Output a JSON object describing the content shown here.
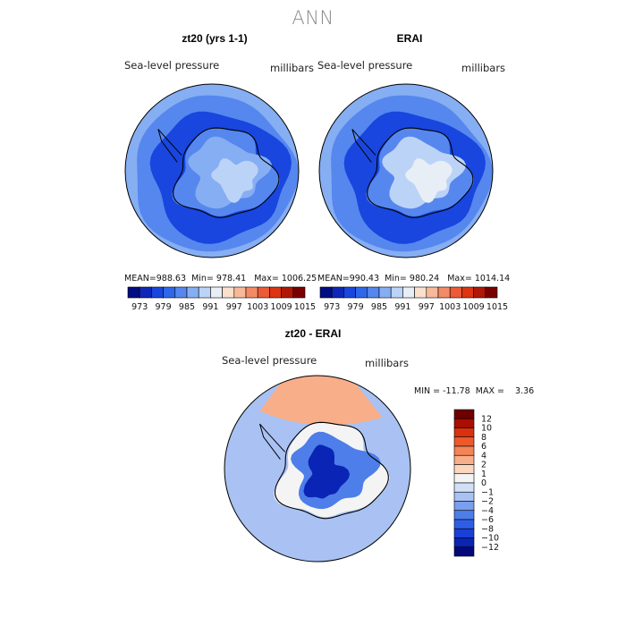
{
  "figure": {
    "title": "ANN",
    "colors": {
      "abs_scale": [
        "#000d82",
        "#0f27b8",
        "#1846de",
        "#2f67ea",
        "#5687ee",
        "#86aef3",
        "#bcd3f8",
        "#e8eef6",
        "#fbe0cd",
        "#f8b89a",
        "#f38a66",
        "#ec5a37",
        "#dd3412",
        "#b01706",
        "#7a0000"
      ],
      "diff_scale": [
        "#04087a",
        "#0a24b6",
        "#1a40d8",
        "#2d5ee4",
        "#4d7ee9",
        "#7a9fed",
        "#a9c2f3",
        "#d2e0f7",
        "#f4f4f4",
        "#fbd7bf",
        "#f8ae89",
        "#f38455",
        "#ec5a2c",
        "#d9310e",
        "#a80e02",
        "#6e0000"
      ],
      "coast": "#000000"
    }
  },
  "panels": {
    "left": {
      "title": "zt20 (yrs 1-1)",
      "var_label": "Sea-level pressure",
      "units": "millibars",
      "stats": {
        "mean_label": "MEAN=",
        "mean": "988.63",
        "min_label": "Min=",
        "min": "978.41",
        "max_label": "Max=",
        "max": "1006.25"
      },
      "ticks": [
        "973",
        "979",
        "985",
        "991",
        "997",
        "1003",
        "1009",
        "1015"
      ]
    },
    "right": {
      "title": "ERAI",
      "var_label": "Sea-level pressure",
      "units": "millibars",
      "stats": {
        "mean_label": "MEAN=",
        "mean": "990.43",
        "min_label": "Min=",
        "min": "980.24",
        "max_label": "Max=",
        "max": "1014.14"
      },
      "ticks": [
        "973",
        "979",
        "985",
        "991",
        "997",
        "1003",
        "1009",
        "1015"
      ]
    },
    "diff": {
      "title": "zt20 - ERAI",
      "var_label": "Sea-level pressure",
      "units": "millibars",
      "minmax_text": "MIN = -11.78  MAX =    3.36",
      "ticks": [
        "12",
        "10",
        "8",
        "6",
        "4",
        "2",
        "1",
        "0",
        "−1",
        "−2",
        "−4",
        "−6",
        "−8",
        "−10",
        "−12"
      ]
    }
  },
  "chart_data": [
    {
      "type": "heatmap",
      "title": "zt20 (yrs 1-1)",
      "projection": "south-polar-stereographic",
      "variable": "Sea-level pressure",
      "units": "millibars",
      "mean": 988.63,
      "min": 978.41,
      "max": 1006.25,
      "levels": [
        973,
        979,
        985,
        991,
        997,
        1003,
        1009,
        1015
      ],
      "zones": [
        {
          "region": "outer ring (northern edge)",
          "value": 1001
        },
        {
          "region": "mid-latitude band",
          "value": 993
        },
        {
          "region": "circumpolar trough",
          "value": 982
        },
        {
          "region": "coastal Antarctica",
          "value": 992
        },
        {
          "region": "interior plateau",
          "value": 1000
        },
        {
          "region": "east plateau maximum",
          "value": 1005
        }
      ]
    },
    {
      "type": "heatmap",
      "title": "ERAI",
      "projection": "south-polar-stereographic",
      "variable": "Sea-level pressure",
      "units": "millibars",
      "mean": 990.43,
      "min": 980.24,
      "max": 1014.14,
      "levels": [
        973,
        979,
        985,
        991,
        997,
        1003,
        1009,
        1015
      ],
      "zones": [
        {
          "region": "outer ring (northern edge)",
          "value": 1002
        },
        {
          "region": "mid-latitude band",
          "value": 994
        },
        {
          "region": "circumpolar trough",
          "value": 983
        },
        {
          "region": "coastal Antarctica",
          "value": 994
        },
        {
          "region": "interior plateau",
          "value": 1006
        },
        {
          "region": "east plateau maximum",
          "value": 1012
        }
      ]
    },
    {
      "type": "heatmap",
      "title": "zt20 - ERAI",
      "projection": "south-polar-stereographic",
      "variable": "Sea-level pressure",
      "units": "millibars",
      "min": -11.78,
      "max": 3.36,
      "levels": [
        -12,
        -10,
        -8,
        -6,
        -4,
        -2,
        -1,
        0,
        1,
        2,
        4,
        6,
        8,
        10,
        12
      ],
      "zones": [
        {
          "region": "ocean background",
          "value": -1.5
        },
        {
          "region": "north sector (top)",
          "value": 2.5
        },
        {
          "region": "coastal Antarctica",
          "value": 0.5
        },
        {
          "region": "interior plateau",
          "value": -6
        },
        {
          "region": "deep interior minimum",
          "value": -11
        }
      ]
    }
  ]
}
